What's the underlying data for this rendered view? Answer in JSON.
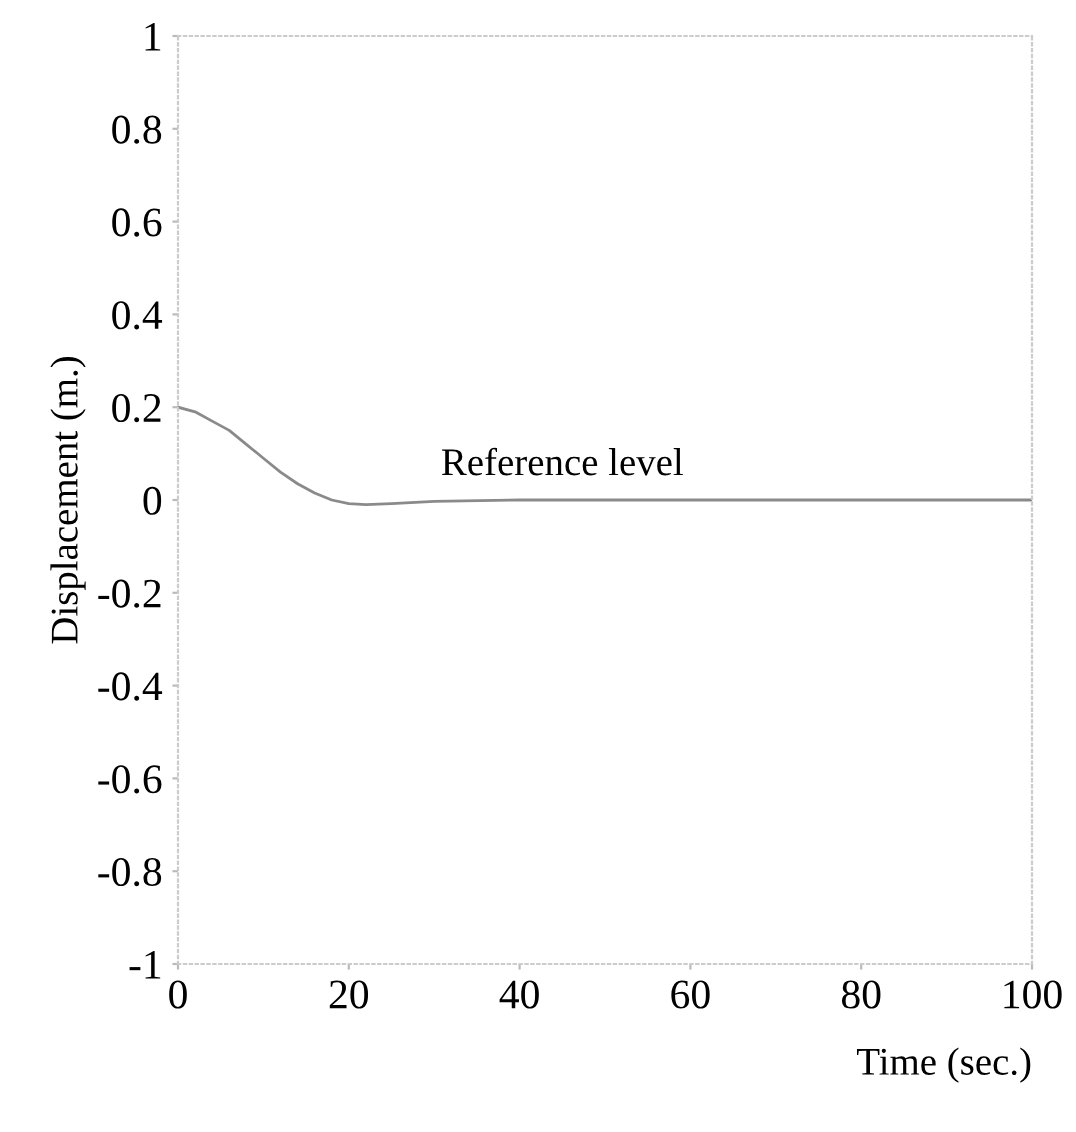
{
  "chart_data": {
    "type": "line",
    "xlabel": "Time (sec.)",
    "ylabel": "Displacement (m.)",
    "xlim": [
      0,
      100
    ],
    "ylim": [
      -1,
      1
    ],
    "xticks": [
      0,
      20,
      40,
      60,
      80,
      100
    ],
    "yticks": [
      {
        "value": -1,
        "label": "-1"
      },
      {
        "value": -0.8,
        "label": "-0.8"
      },
      {
        "value": -0.6,
        "label": "-0.6"
      },
      {
        "value": -0.4,
        "label": "-0.4"
      },
      {
        "value": -0.2,
        "label": "-0.2"
      },
      0,
      0.2,
      0.4,
      0.6,
      0.8,
      1
    ],
    "x": [
      0,
      2,
      4,
      6,
      8,
      10,
      12,
      14,
      16,
      18,
      20,
      22,
      25,
      30,
      40,
      50,
      60,
      70,
      80,
      90,
      100
    ],
    "series": [
      {
        "color": "#8a8a8a",
        "values": [
          0.2,
          0.19,
          0.17,
          0.15,
          0.12,
          0.09,
          0.06,
          0.035,
          0.015,
          0.0,
          -0.008,
          -0.01,
          -0.008,
          -0.003,
          0,
          0,
          0,
          0,
          0,
          0,
          0
        ]
      }
    ],
    "annotations": [
      {
        "text": "Reference level",
        "x": 45,
        "y": 0
      }
    ],
    "grid": false,
    "line_style": "solid"
  }
}
